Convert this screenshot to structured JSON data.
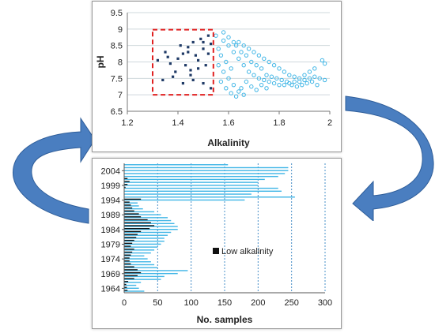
{
  "colors": {
    "high_alkalinity": "#41b6e6",
    "low_alkalinity": "#111111",
    "dark_points": "#1f3a66",
    "box": "#e02020",
    "arrow": "#4a7ec0"
  },
  "arrows": [
    {
      "name": "left-curved-arrow-icon"
    },
    {
      "name": "right-curved-arrow-icon"
    }
  ],
  "chart_data": [
    {
      "type": "scatter",
      "xlabel": "Alkalinity",
      "ylabel": "pH",
      "xlim": [
        1.2,
        2.0
      ],
      "ylim": [
        6.5,
        9.5
      ],
      "x_ticks": [
        "1.2",
        "1.4",
        "1.6",
        "1.8",
        "2"
      ],
      "y_ticks": [
        "6.5",
        "7",
        "7.5",
        "8",
        "8.5",
        "9",
        "9.5"
      ],
      "grid": "horizontal",
      "highlight_box": {
        "x": [
          1.3,
          1.54
        ],
        "y": [
          7.0,
          8.98
        ]
      },
      "series": [
        {
          "color": "#1f3a66",
          "marker": "filled-square",
          "points": [
            [
              1.34,
              7.45
            ],
            [
              1.38,
              7.55
            ],
            [
              1.42,
              7.35
            ],
            [
              1.45,
              7.6
            ],
            [
              1.32,
              8.05
            ],
            [
              1.36,
              8.15
            ],
            [
              1.4,
              8.1
            ],
            [
              1.44,
              8.3
            ],
            [
              1.47,
              8.2
            ],
            [
              1.5,
              8.4
            ],
            [
              1.52,
              8.25
            ],
            [
              1.41,
              8.5
            ],
            [
              1.46,
              8.6
            ],
            [
              1.49,
              8.7
            ],
            [
              1.53,
              8.55
            ],
            [
              1.43,
              7.9
            ],
            [
              1.48,
              7.8
            ],
            [
              1.51,
              7.9
            ],
            [
              1.39,
              7.7
            ],
            [
              1.46,
              7.45
            ],
            [
              1.5,
              7.35
            ],
            [
              1.53,
              7.2
            ],
            [
              1.35,
              8.3
            ],
            [
              1.44,
              8.45
            ],
            [
              1.52,
              8.8
            ],
            [
              1.48,
              8.05
            ],
            [
              1.42,
              8.25
            ],
            [
              1.37,
              7.95
            ],
            [
              1.5,
              8.6
            ],
            [
              1.45,
              7.75
            ]
          ]
        },
        {
          "color": "#41b6e6",
          "marker": "hollow-circle",
          "points": [
            [
              1.55,
              8.8
            ],
            [
              1.58,
              8.65
            ],
            [
              1.6,
              8.5
            ],
            [
              1.62,
              8.3
            ],
            [
              1.64,
              8.1
            ],
            [
              1.66,
              7.9
            ],
            [
              1.68,
              7.7
            ],
            [
              1.7,
              7.6
            ],
            [
              1.72,
              7.5
            ],
            [
              1.74,
              7.45
            ],
            [
              1.76,
              7.4
            ],
            [
              1.78,
              7.35
            ],
            [
              1.8,
              7.3
            ],
            [
              1.82,
              7.3
            ],
            [
              1.84,
              7.35
            ],
            [
              1.86,
              7.4
            ],
            [
              1.88,
              7.4
            ],
            [
              1.9,
              7.45
            ],
            [
              1.92,
              7.5
            ],
            [
              1.94,
              7.55
            ],
            [
              1.96,
              7.5
            ],
            [
              1.98,
              7.45
            ],
            [
              1.56,
              7.9
            ],
            [
              1.58,
              7.7
            ],
            [
              1.6,
              7.5
            ],
            [
              1.62,
              7.3
            ],
            [
              1.64,
              7.1
            ],
            [
              1.66,
              7.0
            ],
            [
              1.57,
              8.2
            ],
            [
              1.59,
              8.0
            ],
            [
              1.61,
              7.8
            ],
            [
              1.63,
              8.5
            ],
            [
              1.65,
              8.3
            ],
            [
              1.67,
              8.2
            ],
            [
              1.69,
              8.0
            ],
            [
              1.71,
              7.9
            ],
            [
              1.73,
              7.8
            ],
            [
              1.75,
              7.6
            ],
            [
              1.77,
              7.55
            ],
            [
              1.79,
              7.5
            ],
            [
              1.81,
              7.45
            ],
            [
              1.83,
              7.4
            ],
            [
              1.85,
              7.3
            ],
            [
              1.87,
              7.25
            ],
            [
              1.89,
              7.3
            ],
            [
              1.91,
              7.35
            ],
            [
              1.93,
              7.4
            ],
            [
              1.95,
              7.3
            ],
            [
              1.97,
              8.05
            ],
            [
              1.98,
              7.95
            ],
            [
              1.56,
              8.4
            ],
            [
              1.58,
              8.9
            ],
            [
              1.6,
              8.75
            ],
            [
              1.62,
              8.6
            ],
            [
              1.64,
              8.6
            ],
            [
              1.66,
              8.5
            ],
            [
              1.68,
              8.4
            ],
            [
              1.7,
              8.3
            ],
            [
              1.72,
              8.2
            ],
            [
              1.74,
              8.1
            ],
            [
              1.76,
              8.0
            ],
            [
              1.78,
              7.9
            ],
            [
              1.8,
              7.8
            ],
            [
              1.82,
              7.7
            ],
            [
              1.84,
              7.6
            ],
            [
              1.86,
              7.55
            ],
            [
              1.88,
              7.5
            ],
            [
              1.9,
              7.6
            ],
            [
              1.92,
              7.7
            ],
            [
              1.94,
              7.8
            ],
            [
              1.57,
              7.4
            ],
            [
              1.59,
              7.2
            ],
            [
              1.61,
              7.05
            ],
            [
              1.63,
              6.95
            ],
            [
              1.65,
              7.2
            ],
            [
              1.67,
              7.4
            ],
            [
              1.69,
              7.25
            ],
            [
              1.71,
              7.15
            ],
            [
              1.73,
              7.3
            ],
            [
              1.75,
              7.2
            ]
          ]
        }
      ]
    },
    {
      "type": "bar",
      "orientation": "horizontal",
      "stacked": false,
      "xlabel": "No. samples",
      "xlim": [
        0,
        300
      ],
      "x_ticks": [
        "0",
        "50",
        "100",
        "150",
        "200",
        "250",
        "300"
      ],
      "y_ticks": [
        "1964",
        "1969",
        "1974",
        "1979",
        "1984",
        "1989",
        "1994",
        "1999",
        "2004"
      ],
      "grid": "vertical",
      "legend": {
        "label": "Low alkalinity",
        "placement": "middle"
      },
      "categories": [
        1963,
        1964,
        1965,
        1966,
        1967,
        1968,
        1969,
        1970,
        1971,
        1972,
        1973,
        1974,
        1975,
        1976,
        1977,
        1978,
        1979,
        1980,
        1981,
        1982,
        1983,
        1984,
        1985,
        1986,
        1987,
        1988,
        1989,
        1990,
        1991,
        1992,
        1993,
        1994,
        1995,
        1996,
        1997,
        1998,
        1999,
        2000,
        2001,
        2002,
        2003,
        2004,
        2005,
        2006
      ],
      "series": [
        {
          "role": "all",
          "color": "#41b6e6",
          "values": [
            30,
            22,
            18,
            25,
            55,
            60,
            80,
            95,
            50,
            45,
            40,
            35,
            30,
            40,
            45,
            50,
            55,
            60,
            60,
            65,
            70,
            80,
            80,
            75,
            70,
            65,
            55,
            45,
            28,
            22,
            20,
            180,
            255,
            190,
            235,
            230,
            200,
            200,
            210,
            230,
            240,
            245,
            245,
            155
          ]
        },
        {
          "role": "low",
          "color": "#111111",
          "values": [
            5,
            4,
            3,
            6,
            15,
            20,
            25,
            20,
            15,
            10,
            8,
            8,
            10,
            12,
            15,
            10,
            12,
            15,
            18,
            20,
            25,
            38,
            45,
            40,
            35,
            25,
            22,
            15,
            12,
            10,
            8,
            25,
            0,
            0,
            0,
            2,
            5,
            8,
            5,
            0,
            0,
            0,
            0,
            0
          ]
        }
      ]
    }
  ]
}
